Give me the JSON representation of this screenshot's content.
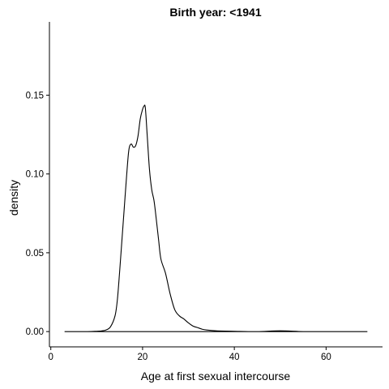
{
  "chart_data": {
    "type": "line",
    "title": "Birth year: <1941",
    "xlabel": "Age at first sexual intercourse",
    "ylabel": "density",
    "xlim": [
      -0.3,
      72.3
    ],
    "ylim": [
      -0.0097,
      0.1965
    ],
    "x_ticks": [
      0,
      20,
      40,
      60
    ],
    "y_ticks": [
      0.0,
      0.05,
      0.1,
      0.15
    ],
    "x_tick_labels": [
      "0",
      "20",
      "40",
      "60"
    ],
    "y_tick_labels": [
      "0.00",
      "0.05",
      "0.10",
      "0.15"
    ],
    "grid": false,
    "series": [
      {
        "x": [
          3,
          8,
          10,
          11,
          12,
          13,
          14,
          14.5,
          15,
          15.5,
          16,
          16.5,
          17,
          17.5,
          18,
          18.5,
          19,
          19.5,
          20,
          20.3,
          20.6,
          21,
          21.5,
          22,
          22.5,
          23,
          23.5,
          24,
          25,
          26,
          27,
          28,
          29,
          30,
          31,
          32,
          33,
          34,
          36,
          40,
          45,
          50,
          55,
          60,
          65,
          69
        ],
        "y": [
          0.0,
          0.0,
          0.0002,
          0.0004,
          0.001,
          0.003,
          0.01,
          0.02,
          0.038,
          0.058,
          0.078,
          0.098,
          0.115,
          0.119,
          0.117,
          0.118,
          0.124,
          0.135,
          0.141,
          0.143,
          0.142,
          0.125,
          0.103,
          0.09,
          0.083,
          0.071,
          0.058,
          0.046,
          0.037,
          0.024,
          0.014,
          0.01,
          0.008,
          0.0055,
          0.0035,
          0.0025,
          0.0015,
          0.001,
          0.0005,
          0.0002,
          0.0,
          0.0005,
          0.0,
          0.0,
          0.0,
          0.0
        ],
        "color": "#000000"
      }
    ]
  }
}
